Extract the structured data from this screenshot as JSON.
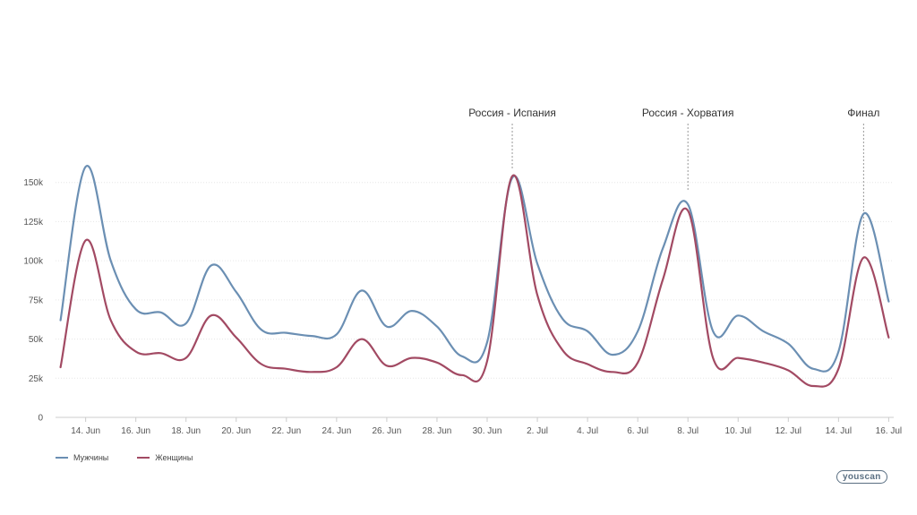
{
  "chart_data": {
    "type": "line",
    "title": "",
    "xlabel": "",
    "ylabel": "",
    "ylim": [
      0,
      150000
    ],
    "yticks": [
      {
        "value": 0,
        "label": "0"
      },
      {
        "value": 25000,
        "label": "25k"
      },
      {
        "value": 50000,
        "label": "50k"
      },
      {
        "value": 75000,
        "label": "75k"
      },
      {
        "value": 100000,
        "label": "100k"
      },
      {
        "value": 125000,
        "label": "125k"
      },
      {
        "value": 150000,
        "label": "150k"
      }
    ],
    "xticks": [
      {
        "day": 14,
        "label": "14. Jun"
      },
      {
        "day": 16,
        "label": "16. Jun"
      },
      {
        "day": 18,
        "label": "18. Jun"
      },
      {
        "day": 20,
        "label": "20. Jun"
      },
      {
        "day": 22,
        "label": "22. Jun"
      },
      {
        "day": 24,
        "label": "24. Jun"
      },
      {
        "day": 26,
        "label": "26. Jun"
      },
      {
        "day": 28,
        "label": "28. Jun"
      },
      {
        "day": 30,
        "label": "30. Jun"
      },
      {
        "day": 32,
        "label": "2. Jul"
      },
      {
        "day": 34,
        "label": "4. Jul"
      },
      {
        "day": 36,
        "label": "6. Jul"
      },
      {
        "day": 38,
        "label": "8. Jul"
      },
      {
        "day": 40,
        "label": "10. Jul"
      },
      {
        "day": 42,
        "label": "12. Jul"
      },
      {
        "day": 44,
        "label": "14. Jul"
      },
      {
        "day": 46,
        "label": "16. Jul"
      }
    ],
    "x_range": [
      12.8,
      46.2
    ],
    "series": [
      {
        "name": "Мужчины",
        "color": "#6b8fb3",
        "points": [
          [
            13,
            62000
          ],
          [
            14,
            160000
          ],
          [
            15,
            100000
          ],
          [
            16,
            69000
          ],
          [
            17,
            67000
          ],
          [
            18,
            60000
          ],
          [
            19,
            97000
          ],
          [
            20,
            80000
          ],
          [
            21,
            56000
          ],
          [
            22,
            54000
          ],
          [
            23,
            52000
          ],
          [
            24,
            53000
          ],
          [
            25,
            81000
          ],
          [
            26,
            58000
          ],
          [
            27,
            68000
          ],
          [
            28,
            58000
          ],
          [
            29,
            39000
          ],
          [
            30,
            48000
          ],
          [
            31,
            153000
          ],
          [
            32,
            98000
          ],
          [
            33,
            63000
          ],
          [
            34,
            55000
          ],
          [
            35,
            40000
          ],
          [
            36,
            55000
          ],
          [
            37,
            108000
          ],
          [
            38,
            136000
          ],
          [
            39,
            55000
          ],
          [
            40,
            65000
          ],
          [
            41,
            55000
          ],
          [
            42,
            47000
          ],
          [
            43,
            31000
          ],
          [
            44,
            42000
          ],
          [
            45,
            130000
          ],
          [
            46,
            74000
          ]
        ]
      },
      {
        "name": "Женщины",
        "color": "#a24a63",
        "points": [
          [
            13,
            32000
          ],
          [
            14,
            113000
          ],
          [
            15,
            62000
          ],
          [
            16,
            42000
          ],
          [
            17,
            41000
          ],
          [
            18,
            38000
          ],
          [
            19,
            65000
          ],
          [
            20,
            51000
          ],
          [
            21,
            34000
          ],
          [
            22,
            31000
          ],
          [
            23,
            29000
          ],
          [
            24,
            32000
          ],
          [
            25,
            50000
          ],
          [
            26,
            33000
          ],
          [
            27,
            38000
          ],
          [
            28,
            35000
          ],
          [
            29,
            27000
          ],
          [
            30,
            36000
          ],
          [
            31,
            154000
          ],
          [
            32,
            78000
          ],
          [
            33,
            43000
          ],
          [
            34,
            34000
          ],
          [
            35,
            29000
          ],
          [
            36,
            35000
          ],
          [
            37,
            88000
          ],
          [
            38,
            132000
          ],
          [
            39,
            38000
          ],
          [
            40,
            38000
          ],
          [
            41,
            35000
          ],
          [
            42,
            30000
          ],
          [
            43,
            20000
          ],
          [
            44,
            31000
          ],
          [
            45,
            102000
          ],
          [
            46,
            51000
          ]
        ]
      }
    ],
    "annotations": [
      {
        "day": 31,
        "value": 158000,
        "label": "Россия - Испания"
      },
      {
        "day": 38,
        "value": 145000,
        "label": "Россия - Хорватия"
      },
      {
        "day": 45,
        "value": 108000,
        "label": "Финал"
      }
    ],
    "legend": {
      "placement": "bottom-left"
    }
  },
  "legend_items": [
    {
      "label": "Мужчины",
      "color": "#6b8fb3"
    },
    {
      "label": "Женщины",
      "color": "#a24a63"
    }
  ],
  "logo_text": "youscan"
}
